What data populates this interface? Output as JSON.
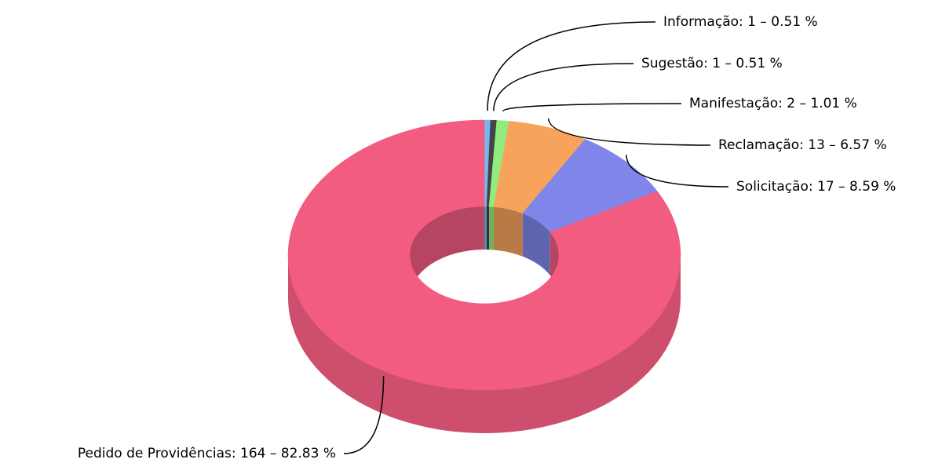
{
  "chart_data": {
    "type": "pie3d",
    "values": [
      1,
      1,
      2,
      13,
      17,
      164
    ],
    "value_labels": [
      "Informação: 1 – 0.51 %",
      "Sugestão: 1 – 0.51 %",
      "Manifestação: 2 – 1.01 %",
      "Reclamação: 13 – 6.57 %",
      "Solicitação: 17 – 8.59 %",
      "Pedido de Providências: 164 – 82.83 %"
    ],
    "colors": [
      "#7cb5ec",
      "#434348",
      "#90ed7d",
      "#f7a35c",
      "#8085e9",
      "#f15c80"
    ]
  }
}
